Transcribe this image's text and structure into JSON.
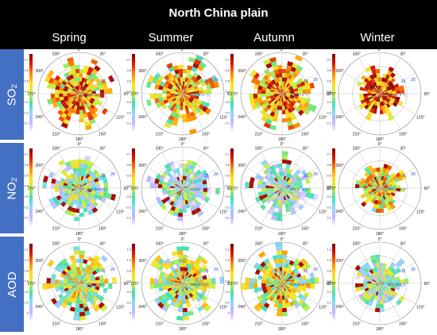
{
  "header": {
    "title": "North China plain"
  },
  "seasons": [
    "Spring",
    "Summer",
    "Autumn",
    "Winter"
  ],
  "row_labels": {
    "so2": "SO₂",
    "no2": "NO₂",
    "aod": "AOD"
  },
  "colorscale": [
    "#ffffff",
    "#c8b4ff",
    "#8fd8ff",
    "#40e0b0",
    "#c8f040",
    "#ffe020",
    "#ff8c00",
    "#e02000",
    "#8b0000"
  ],
  "chart_data": [
    {
      "type": "heatmap",
      "polar": true,
      "variable": "SO2",
      "angular_ticks": [
        "0°",
        "30°",
        "90°",
        "120°",
        "150°",
        "180°",
        "210°",
        "240°",
        "270°",
        "300°",
        "330°"
      ],
      "radial_ticks": [
        "15",
        "20"
      ],
      "radial_label": "WS (m s⁻¹)",
      "colorbar_ticks": [
        "0.1",
        "0.2",
        "0.3",
        "0.4",
        "0.5",
        "0.6",
        "0.7"
      ],
      "colorbar_range": [
        0,
        0.7
      ],
      "panels": [
        {
          "season": "Spring",
          "intensity": 0.75,
          "extent": 0.78
        },
        {
          "season": "Summer",
          "intensity": 0.72,
          "extent": 0.78
        },
        {
          "season": "Autumn",
          "intensity": 0.78,
          "extent": 0.8
        },
        {
          "season": "Winter",
          "intensity": 0.85,
          "extent": 0.55
        }
      ]
    },
    {
      "type": "heatmap",
      "polar": true,
      "variable": "NO2",
      "angular_ticks": [
        "0°",
        "30°",
        "90°",
        "120°",
        "150°",
        "180°",
        "210°",
        "240°",
        "270°",
        "300°",
        "330°"
      ],
      "radial_ticks": [
        "15",
        "20"
      ],
      "radial_label": "WS (m s⁻¹)",
      "colorbar_ticks": [
        "0.1",
        "0.2",
        "0.3",
        "0.4",
        "0.5",
        "0.6",
        "0.7"
      ],
      "colorbar_range": [
        0,
        0.7
      ],
      "panels": [
        {
          "season": "Spring",
          "intensity": 0.45,
          "extent": 0.75
        },
        {
          "season": "Summer",
          "intensity": 0.35,
          "extent": 0.72
        },
        {
          "season": "Autumn",
          "intensity": 0.38,
          "extent": 0.72
        },
        {
          "season": "Winter",
          "intensity": 0.65,
          "extent": 0.55
        }
      ]
    },
    {
      "type": "heatmap",
      "polar": true,
      "variable": "AOD",
      "angular_ticks": [
        "0°",
        "30°",
        "90°",
        "120°",
        "150°",
        "180°",
        "210°",
        "240°",
        "270°",
        "300°",
        "330°"
      ],
      "radial_ticks": [
        "15",
        "20"
      ],
      "radial_label": "WS (m s⁻¹)",
      "colorbar_ticks": [
        "0",
        "0.2",
        "0.4",
        "0.6",
        "0.8",
        "1.0",
        "1.2"
      ],
      "colorbar_range": [
        0,
        1.2
      ],
      "panels": [
        {
          "season": "Spring",
          "intensity": 0.55,
          "extent": 0.78
        },
        {
          "season": "Summer",
          "intensity": 0.55,
          "extent": 0.78
        },
        {
          "season": "Autumn",
          "intensity": 0.58,
          "extent": 0.8
        },
        {
          "season": "Winter",
          "intensity": 0.4,
          "extent": 0.6
        }
      ]
    }
  ]
}
